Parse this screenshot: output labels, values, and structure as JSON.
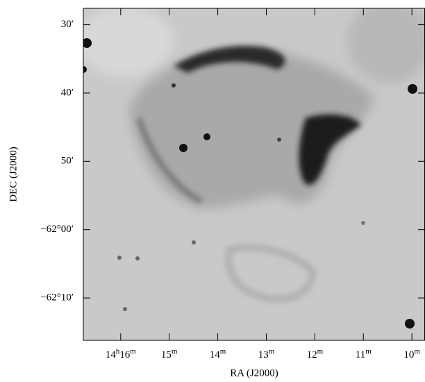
{
  "chart_data": {
    "type": "image",
    "xlabel": "RA (J2000)",
    "ylabel": "DEC (J2000)",
    "xlim": [
      16.77,
      9.73
    ],
    "xticks": [
      {
        "value": 16,
        "label": "14h16m"
      },
      {
        "value": 15,
        "label": "15m"
      },
      {
        "value": 14,
        "label": "14m"
      },
      {
        "value": 13,
        "label": "13m"
      },
      {
        "value": 12,
        "label": "12m"
      },
      {
        "value": 11,
        "label": "11m"
      },
      {
        "value": 10,
        "label": "10m"
      }
    ],
    "ylim": [
      -61.46,
      -62.27
    ],
    "yticks": [
      {
        "value": -61.5,
        "label": "30′"
      },
      {
        "value": -61.6667,
        "label": "40′"
      },
      {
        "value": -61.8333,
        "label": "50′"
      },
      {
        "value": -62,
        "label": "−62°00′"
      },
      {
        "value": -62.1667,
        "label": "−62°10′"
      }
    ]
  }
}
